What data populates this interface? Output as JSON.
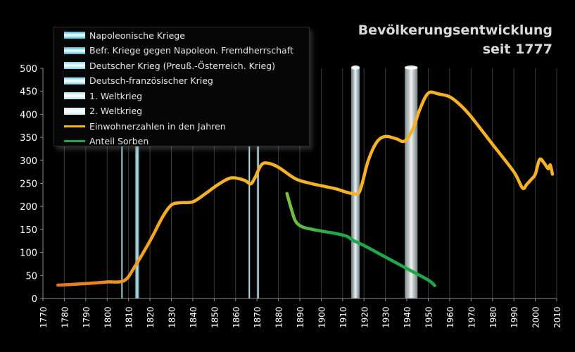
{
  "title": {
    "line1": "Bevölkerungsentwicklung",
    "line2": "seit 1777"
  },
  "legend": {
    "items": [
      {
        "label": "Napoleonische Kriege",
        "kind": "band",
        "color": "#3fb8d6"
      },
      {
        "label": "Befr. Kriege gegen Napoleon. Fremdherrschaft",
        "kind": "band",
        "color": "#3fb8d6"
      },
      {
        "label": "Deutscher Krieg (Preuß.-Österreich. Krieg)",
        "kind": "band",
        "color": "#7fd3e6"
      },
      {
        "label": "Deutsch-französischer Krieg",
        "kind": "band",
        "color": "#7fd3e6"
      },
      {
        "label": "1. Weltkrieg",
        "kind": "band",
        "color": "#b7dfe9"
      },
      {
        "label": "2. Weltkrieg",
        "kind": "band",
        "color": "#d6ecf2"
      },
      {
        "label": "Einwohnerzahlen in den Jahren",
        "kind": "line",
        "color": "#f5b324"
      },
      {
        "label": "Anteil Sorben",
        "kind": "line",
        "color": "#1fa84a"
      }
    ]
  },
  "chart_data": {
    "type": "line",
    "xlim": [
      1770,
      2010
    ],
    "ylim": [
      0,
      500
    ],
    "x_ticks": [
      1770,
      1780,
      1790,
      1800,
      1810,
      1820,
      1830,
      1840,
      1850,
      1860,
      1870,
      1880,
      1890,
      1900,
      1910,
      1920,
      1930,
      1940,
      1950,
      1960,
      1970,
      1980,
      1990,
      2000,
      2010
    ],
    "y_ticks": [
      0,
      50,
      100,
      150,
      200,
      250,
      300,
      350,
      400,
      450,
      500
    ],
    "grid": "vertical",
    "legend_position": "top-left",
    "war_periods": [
      {
        "name": "Napoleonische Kriege",
        "start": 1806.5,
        "end": 1807.3,
        "color": "#3fb8d6"
      },
      {
        "name": "Befr. Kriege gegen Napoleon. Fremdherrschaft",
        "start": 1813,
        "end": 1815,
        "color": "#3fb8d6"
      },
      {
        "name": "Deutscher Krieg (Preuß.-Österreich. Krieg)",
        "start": 1866,
        "end": 1866.8,
        "color": "#7fd3e6"
      },
      {
        "name": "Deutsch-französischer Krieg",
        "start": 1870,
        "end": 1871,
        "color": "#7fd3e6"
      },
      {
        "name": "1. Weltkrieg",
        "start": 1914,
        "end": 1918,
        "color": "#b7dfe9"
      },
      {
        "name": "2. Weltkrieg",
        "start": 1939,
        "end": 1945,
        "color": "#d6ecf2"
      }
    ],
    "series": [
      {
        "name": "Einwohnerzahlen in den Jahren",
        "color": "#f5b324",
        "color_early": "#e8741e",
        "x": [
          1777,
          1785,
          1795,
          1800,
          1808,
          1813,
          1820,
          1826,
          1830,
          1834,
          1840,
          1846,
          1852,
          1858,
          1864,
          1867,
          1869,
          1872,
          1875,
          1880,
          1888,
          1895,
          1900,
          1907,
          1911,
          1915,
          1918,
          1922,
          1926,
          1930,
          1935,
          1939,
          1943,
          1946,
          1950,
          1955,
          1960,
          1965,
          1970,
          1980,
          1990,
          1994,
          1996,
          1998,
          2000,
          2002,
          2004,
          2006,
          2007,
          2008
        ],
        "y": [
          29,
          31,
          34,
          36,
          39,
          70,
          125,
          178,
          203,
          208,
          210,
          228,
          248,
          262,
          257,
          249,
          262,
          290,
          294,
          285,
          260,
          250,
          245,
          238,
          232,
          228,
          233,
          300,
          340,
          352,
          347,
          342,
          370,
          410,
          446,
          444,
          438,
          420,
          395,
          335,
          275,
          240,
          248,
          258,
          270,
          302,
          295,
          282,
          290,
          270
        ]
      },
      {
        "name": "Anteil Sorben",
        "color": "#1fa84a",
        "color_early": "#7cc142",
        "x": [
          1884,
          1886,
          1888,
          1891,
          1896,
          1902,
          1908,
          1912,
          1915,
          1920,
          1930,
          1940,
          1950,
          1953
        ],
        "y": [
          228,
          195,
          168,
          156,
          150,
          145,
          140,
          135,
          126,
          115,
          90,
          65,
          40,
          28
        ]
      }
    ]
  }
}
